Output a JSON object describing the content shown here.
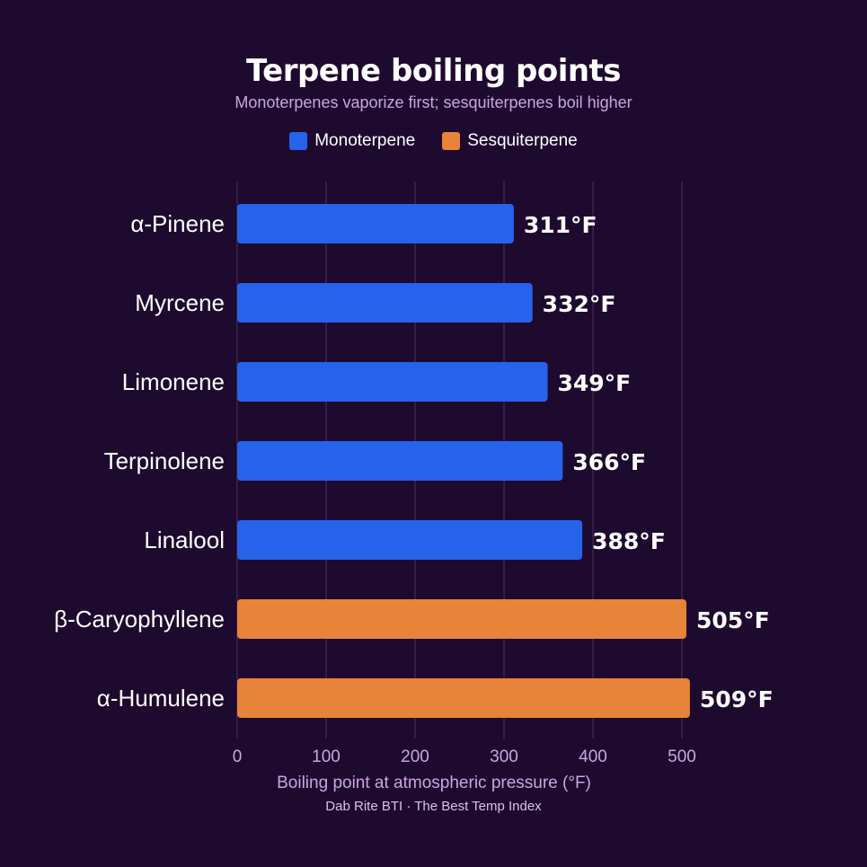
{
  "chart_data": {
    "type": "bar",
    "orientation": "horizontal",
    "title": "Terpene boiling points",
    "subtitle": "Monoterpenes vaporize first; sesquiterpenes boil higher",
    "xlabel": "Boiling point at atmospheric pressure (°F)",
    "ylabel": "",
    "xlim": [
      0,
      500
    ],
    "xticks": [
      0,
      100,
      200,
      300,
      400,
      500
    ],
    "grid": true,
    "legend_position": "top-center",
    "legend": [
      {
        "name": "Monoterpene",
        "color": "#2563eb"
      },
      {
        "name": "Sesquiterpene",
        "color": "#e8833a"
      }
    ],
    "categories": [
      "α-Pinene",
      "Myrcene",
      "Limonene",
      "Terpinolene",
      "Linalool",
      "β-Caryophyllene",
      "α-Humulene"
    ],
    "values": [
      311,
      332,
      349,
      366,
      388,
      505,
      509
    ],
    "groups": [
      "Monoterpene",
      "Monoterpene",
      "Monoterpene",
      "Monoterpene",
      "Monoterpene",
      "Sesquiterpene",
      "Sesquiterpene"
    ],
    "value_labels": [
      "311°F",
      "332°F",
      "349°F",
      "366°F",
      "388°F",
      "505°F",
      "509°F"
    ],
    "source": "Dab Rite BTI · The Best Temp Index"
  },
  "colors": {
    "background": "#1e0a2e",
    "grid": "#3b2550",
    "axis_text": "#c9a6e0"
  }
}
